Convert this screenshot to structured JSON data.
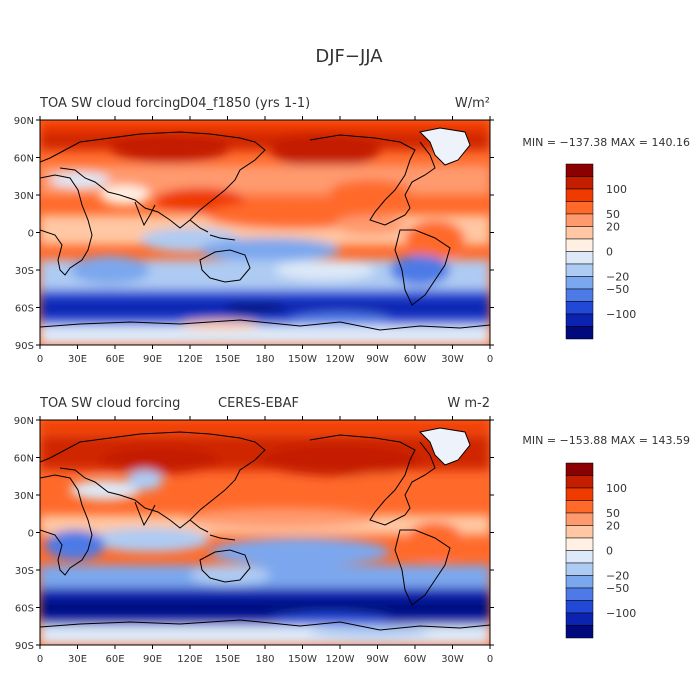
{
  "figure_title": "DJF−JJA",
  "panels": [
    {
      "field_label": "TOA SW cloud forcing",
      "case_label": "D04_f1850 (yrs 1-1)",
      "units": "W/m²",
      "stats": "MIN = −137.38  MAX = 140.16",
      "min": -137.38,
      "max": 140.16
    },
    {
      "field_label": "TOA SW cloud forcing",
      "case_label": "CERES-EBAF",
      "units": "W m-2",
      "stats": "MIN = −153.88  MAX = 143.59",
      "min": -153.88,
      "max": 143.59
    }
  ],
  "lat_ticks": [
    "90N",
    "60N",
    "30N",
    "0",
    "30S",
    "60S",
    "90S"
  ],
  "lon_ticks": [
    "0",
    "30E",
    "60E",
    "90E",
    "120E",
    "150E",
    "180",
    "150W",
    "120W",
    "90W",
    "60W",
    "30W",
    "0"
  ],
  "colorbar": {
    "colors": [
      "#8b0000",
      "#c41e00",
      "#ef3a00",
      "#ff6a2b",
      "#ff9a6e",
      "#ffc7a3",
      "#fff0e3",
      "#dde9f8",
      "#aecbf3",
      "#7ba7ee",
      "#4d7ae6",
      "#2148d6",
      "#0b23b0",
      "#000a7c"
    ],
    "labels": [
      "100",
      "50",
      "20",
      "0",
      "−20",
      "−50",
      "−100"
    ]
  }
}
